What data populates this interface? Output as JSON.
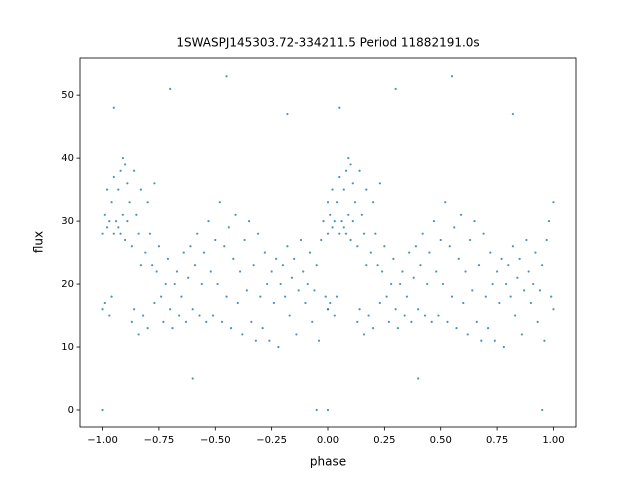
{
  "chart_data": {
    "type": "scatter",
    "title": "1SWASPJ145303.72-334211.5 Period 11882191.0s",
    "x_label": "phase",
    "y_label": "flux",
    "color": "#1f77b4",
    "xlim": [
      -1.1,
      1.1
    ],
    "ylim": [
      -2.7,
      55.9
    ],
    "xticks": [
      {
        "value": -1.0,
        "label": "−1.00"
      },
      {
        "value": -0.75,
        "label": "−0.75"
      },
      {
        "value": -0.5,
        "label": "−0.50"
      },
      {
        "value": -0.25,
        "label": "−0.25"
      },
      {
        "value": 0.0,
        "label": "0.00"
      },
      {
        "value": 0.25,
        "label": "0.25"
      },
      {
        "value": 0.5,
        "label": "0.50"
      },
      {
        "value": 0.75,
        "label": "0.75"
      },
      {
        "value": 1.0,
        "label": "1.00"
      }
    ],
    "yticks": [
      0,
      10,
      20,
      30,
      40,
      50
    ],
    "x": [
      0.0,
      0.0,
      0.01,
      0.01,
      0.02,
      0.02,
      0.03,
      0.03,
      0.04,
      0.04,
      0.05,
      0.05,
      0.06,
      0.07,
      0.07,
      0.08,
      0.08,
      0.09,
      0.09,
      0.1,
      0.1,
      0.11,
      0.11,
      0.12,
      0.13,
      0.13,
      0.14,
      0.14,
      0.15,
      0.16,
      0.16,
      0.17,
      0.17,
      0.18,
      0.19,
      0.2,
      0.2,
      0.21,
      0.22,
      0.23,
      0.23,
      0.24,
      0.25,
      0.26,
      0.27,
      0.28,
      0.29,
      0.3,
      0.31,
      0.32,
      0.33,
      0.34,
      0.35,
      0.36,
      0.37,
      0.38,
      0.39,
      0.4,
      0.41,
      0.42,
      0.43,
      0.44,
      0.45,
      0.46,
      0.47,
      0.48,
      0.49,
      0.5,
      0.51,
      0.52,
      0.53,
      0.54,
      0.55,
      0.56,
      0.57,
      0.58,
      0.59,
      0.6,
      0.61,
      0.62,
      0.63,
      0.64,
      0.65,
      0.66,
      0.67,
      0.68,
      0.69,
      0.7,
      0.71,
      0.72,
      0.73,
      0.74,
      0.75,
      0.76,
      0.77,
      0.78,
      0.79,
      0.8,
      0.81,
      0.82,
      0.83,
      0.84,
      0.85,
      0.86,
      0.87,
      0.88,
      0.89,
      0.9,
      0.91,
      0.92,
      0.93,
      0.94,
      0.95,
      0.96,
      0.97,
      0.98,
      0.99,
      1.0,
      1.0,
      0.05,
      0.3,
      0.55,
      0.82,
      0.0,
      0.95,
      0.4,
      -1.0,
      -1.0,
      -0.99,
      -0.99,
      -0.98,
      -0.98,
      -0.97,
      -0.97,
      -0.96,
      -0.96,
      -0.95,
      -0.95,
      -0.94,
      -0.93,
      -0.93,
      -0.92,
      -0.92,
      -0.91,
      -0.91,
      -0.9,
      -0.9,
      -0.89,
      -0.89,
      -0.88,
      -0.87,
      -0.87,
      -0.86,
      -0.86,
      -0.85,
      -0.84,
      -0.84,
      -0.83,
      -0.83,
      -0.82,
      -0.81,
      -0.8,
      -0.8,
      -0.79,
      -0.78,
      -0.77,
      -0.77,
      -0.76,
      -0.75,
      -0.74,
      -0.73,
      -0.72,
      -0.71,
      -0.7,
      -0.69,
      -0.68,
      -0.67,
      -0.66,
      -0.65,
      -0.64,
      -0.63,
      -0.62,
      -0.61,
      -0.6,
      -0.59,
      -0.58,
      -0.57,
      -0.56,
      -0.55,
      -0.54,
      -0.53,
      -0.52,
      -0.51,
      -0.5,
      -0.49,
      -0.48,
      -0.47,
      -0.46,
      -0.45,
      -0.44,
      -0.43,
      -0.42,
      -0.41,
      -0.4,
      -0.39,
      -0.38,
      -0.37,
      -0.36,
      -0.35,
      -0.34,
      -0.33,
      -0.32,
      -0.31,
      -0.3,
      -0.29,
      -0.28,
      -0.27,
      -0.26,
      -0.25,
      -0.24,
      -0.23,
      -0.22,
      -0.21,
      -0.2,
      -0.19,
      -0.18,
      -0.17,
      -0.16,
      -0.15,
      -0.14,
      -0.13,
      -0.12,
      -0.11,
      -0.1,
      -0.09,
      -0.08,
      -0.07,
      -0.06,
      -0.05,
      -0.04,
      -0.03,
      -0.02,
      -0.01,
      0.0,
      0.0,
      -0.95,
      -0.7,
      -0.45,
      -0.18,
      -1.0,
      -0.05,
      -0.6
    ],
    "values": [
      28,
      16,
      31,
      17,
      29,
      35,
      15,
      30,
      33,
      18,
      28,
      37,
      30,
      29,
      35,
      38,
      28,
      40,
      31,
      39,
      27,
      36,
      30,
      33,
      26,
      14,
      38,
      16,
      31,
      28,
      12,
      35,
      23,
      15,
      25,
      33,
      13,
      28,
      23,
      36,
      17,
      22,
      26,
      18,
      14,
      20,
      24,
      16,
      13,
      20,
      22,
      15,
      18,
      25,
      14,
      21,
      26,
      16,
      23,
      28,
      15,
      20,
      25,
      14,
      30,
      22,
      15,
      27,
      20,
      33,
      14,
      26,
      18,
      29,
      13,
      24,
      31,
      17,
      22,
      12,
      27,
      19,
      30,
      14,
      23,
      11,
      28,
      18,
      13,
      25,
      20,
      11,
      22,
      17,
      24,
      10,
      20,
      23,
      18,
      26,
      15,
      21,
      24,
      12,
      19,
      27,
      22,
      17,
      20,
      25,
      14,
      19,
      23,
      11,
      27,
      30,
      18,
      33,
      16,
      48,
      51,
      53,
      47,
      0,
      0,
      5,
      28,
      16,
      31,
      17,
      29,
      35,
      15,
      30,
      33,
      18,
      28,
      37,
      30,
      29,
      35,
      38,
      28,
      40,
      31,
      39,
      27,
      36,
      30,
      33,
      26,
      14,
      38,
      16,
      31,
      28,
      12,
      35,
      23,
      15,
      25,
      33,
      13,
      28,
      23,
      36,
      17,
      22,
      26,
      18,
      14,
      20,
      24,
      16,
      13,
      20,
      22,
      15,
      18,
      25,
      14,
      21,
      26,
      16,
      23,
      28,
      15,
      20,
      25,
      14,
      30,
      22,
      15,
      27,
      20,
      33,
      14,
      26,
      18,
      29,
      13,
      24,
      31,
      17,
      22,
      12,
      27,
      19,
      30,
      14,
      23,
      11,
      28,
      18,
      13,
      25,
      20,
      11,
      22,
      17,
      24,
      10,
      20,
      23,
      18,
      26,
      15,
      21,
      24,
      12,
      19,
      27,
      22,
      17,
      20,
      25,
      14,
      19,
      23,
      11,
      27,
      30,
      18,
      33,
      16,
      48,
      51,
      53,
      47,
      0,
      0,
      5
    ]
  }
}
